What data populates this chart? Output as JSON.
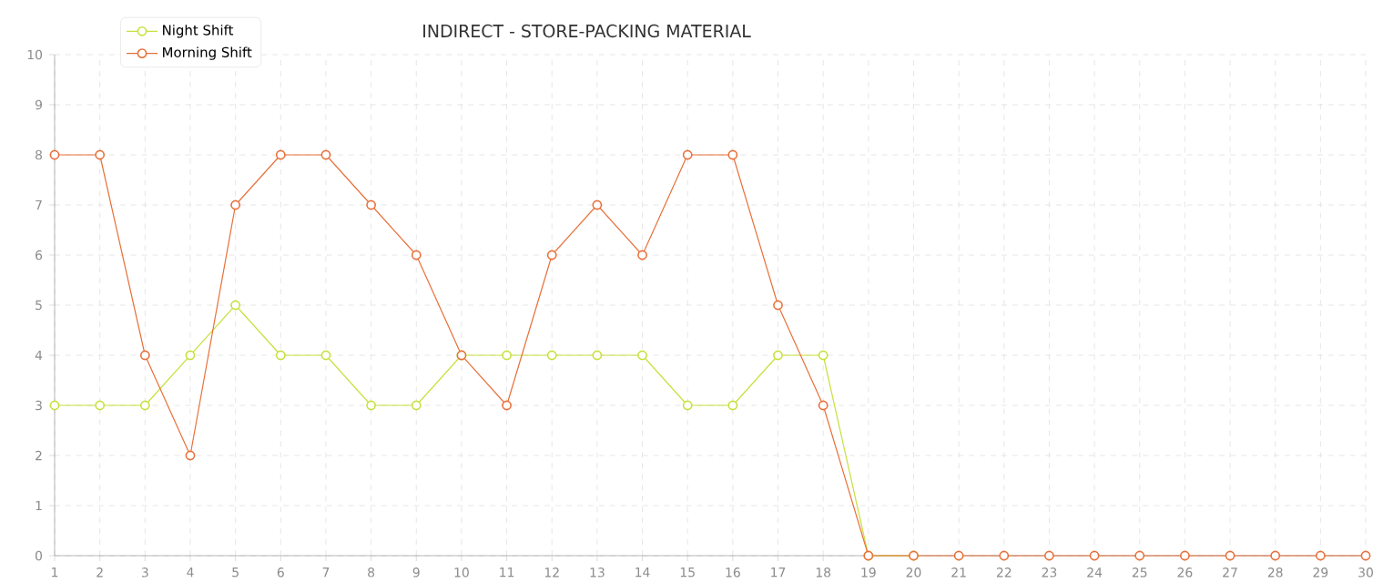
{
  "chart_data": {
    "type": "line",
    "title": "INDIRECT - STORE-PACKING  MATERIAL",
    "x": [
      1,
      2,
      3,
      4,
      5,
      6,
      7,
      8,
      9,
      10,
      11,
      12,
      13,
      14,
      15,
      16,
      17,
      18,
      19,
      20,
      21,
      22,
      23,
      24,
      25,
      26,
      27,
      28,
      29,
      30
    ],
    "series": [
      {
        "name": "Night Shift",
        "color": "#c8e03c",
        "values": [
          3,
          3,
          3,
          4,
          5,
          4,
          4,
          3,
          3,
          4,
          4,
          4,
          4,
          4,
          3,
          3,
          4,
          4,
          0,
          0,
          null,
          null,
          null,
          null,
          null,
          null,
          null,
          null,
          null,
          null
        ]
      },
      {
        "name": "Morning Shift",
        "color": "#e8703a",
        "values": [
          8,
          8,
          4,
          2,
          7,
          8,
          8,
          7,
          6,
          4,
          3,
          6,
          7,
          6,
          8,
          8,
          5,
          3,
          0,
          0,
          0,
          0,
          0,
          0,
          0,
          0,
          0,
          0,
          0,
          0
        ]
      }
    ],
    "xlim": [
      1,
      30
    ],
    "xticks": [
      1,
      2,
      3,
      4,
      5,
      6,
      7,
      8,
      9,
      10,
      11,
      12,
      13,
      14,
      15,
      16,
      17,
      18,
      19,
      20,
      21,
      22,
      23,
      24,
      25,
      26,
      27,
      28,
      29,
      30
    ],
    "ylim": [
      0,
      10
    ],
    "yticks": [
      0,
      1,
      2,
      3,
      4,
      5,
      6,
      7,
      8,
      9,
      10
    ],
    "grid": true,
    "legend": "top left",
    "marker": "circle",
    "line_style": "solid"
  }
}
